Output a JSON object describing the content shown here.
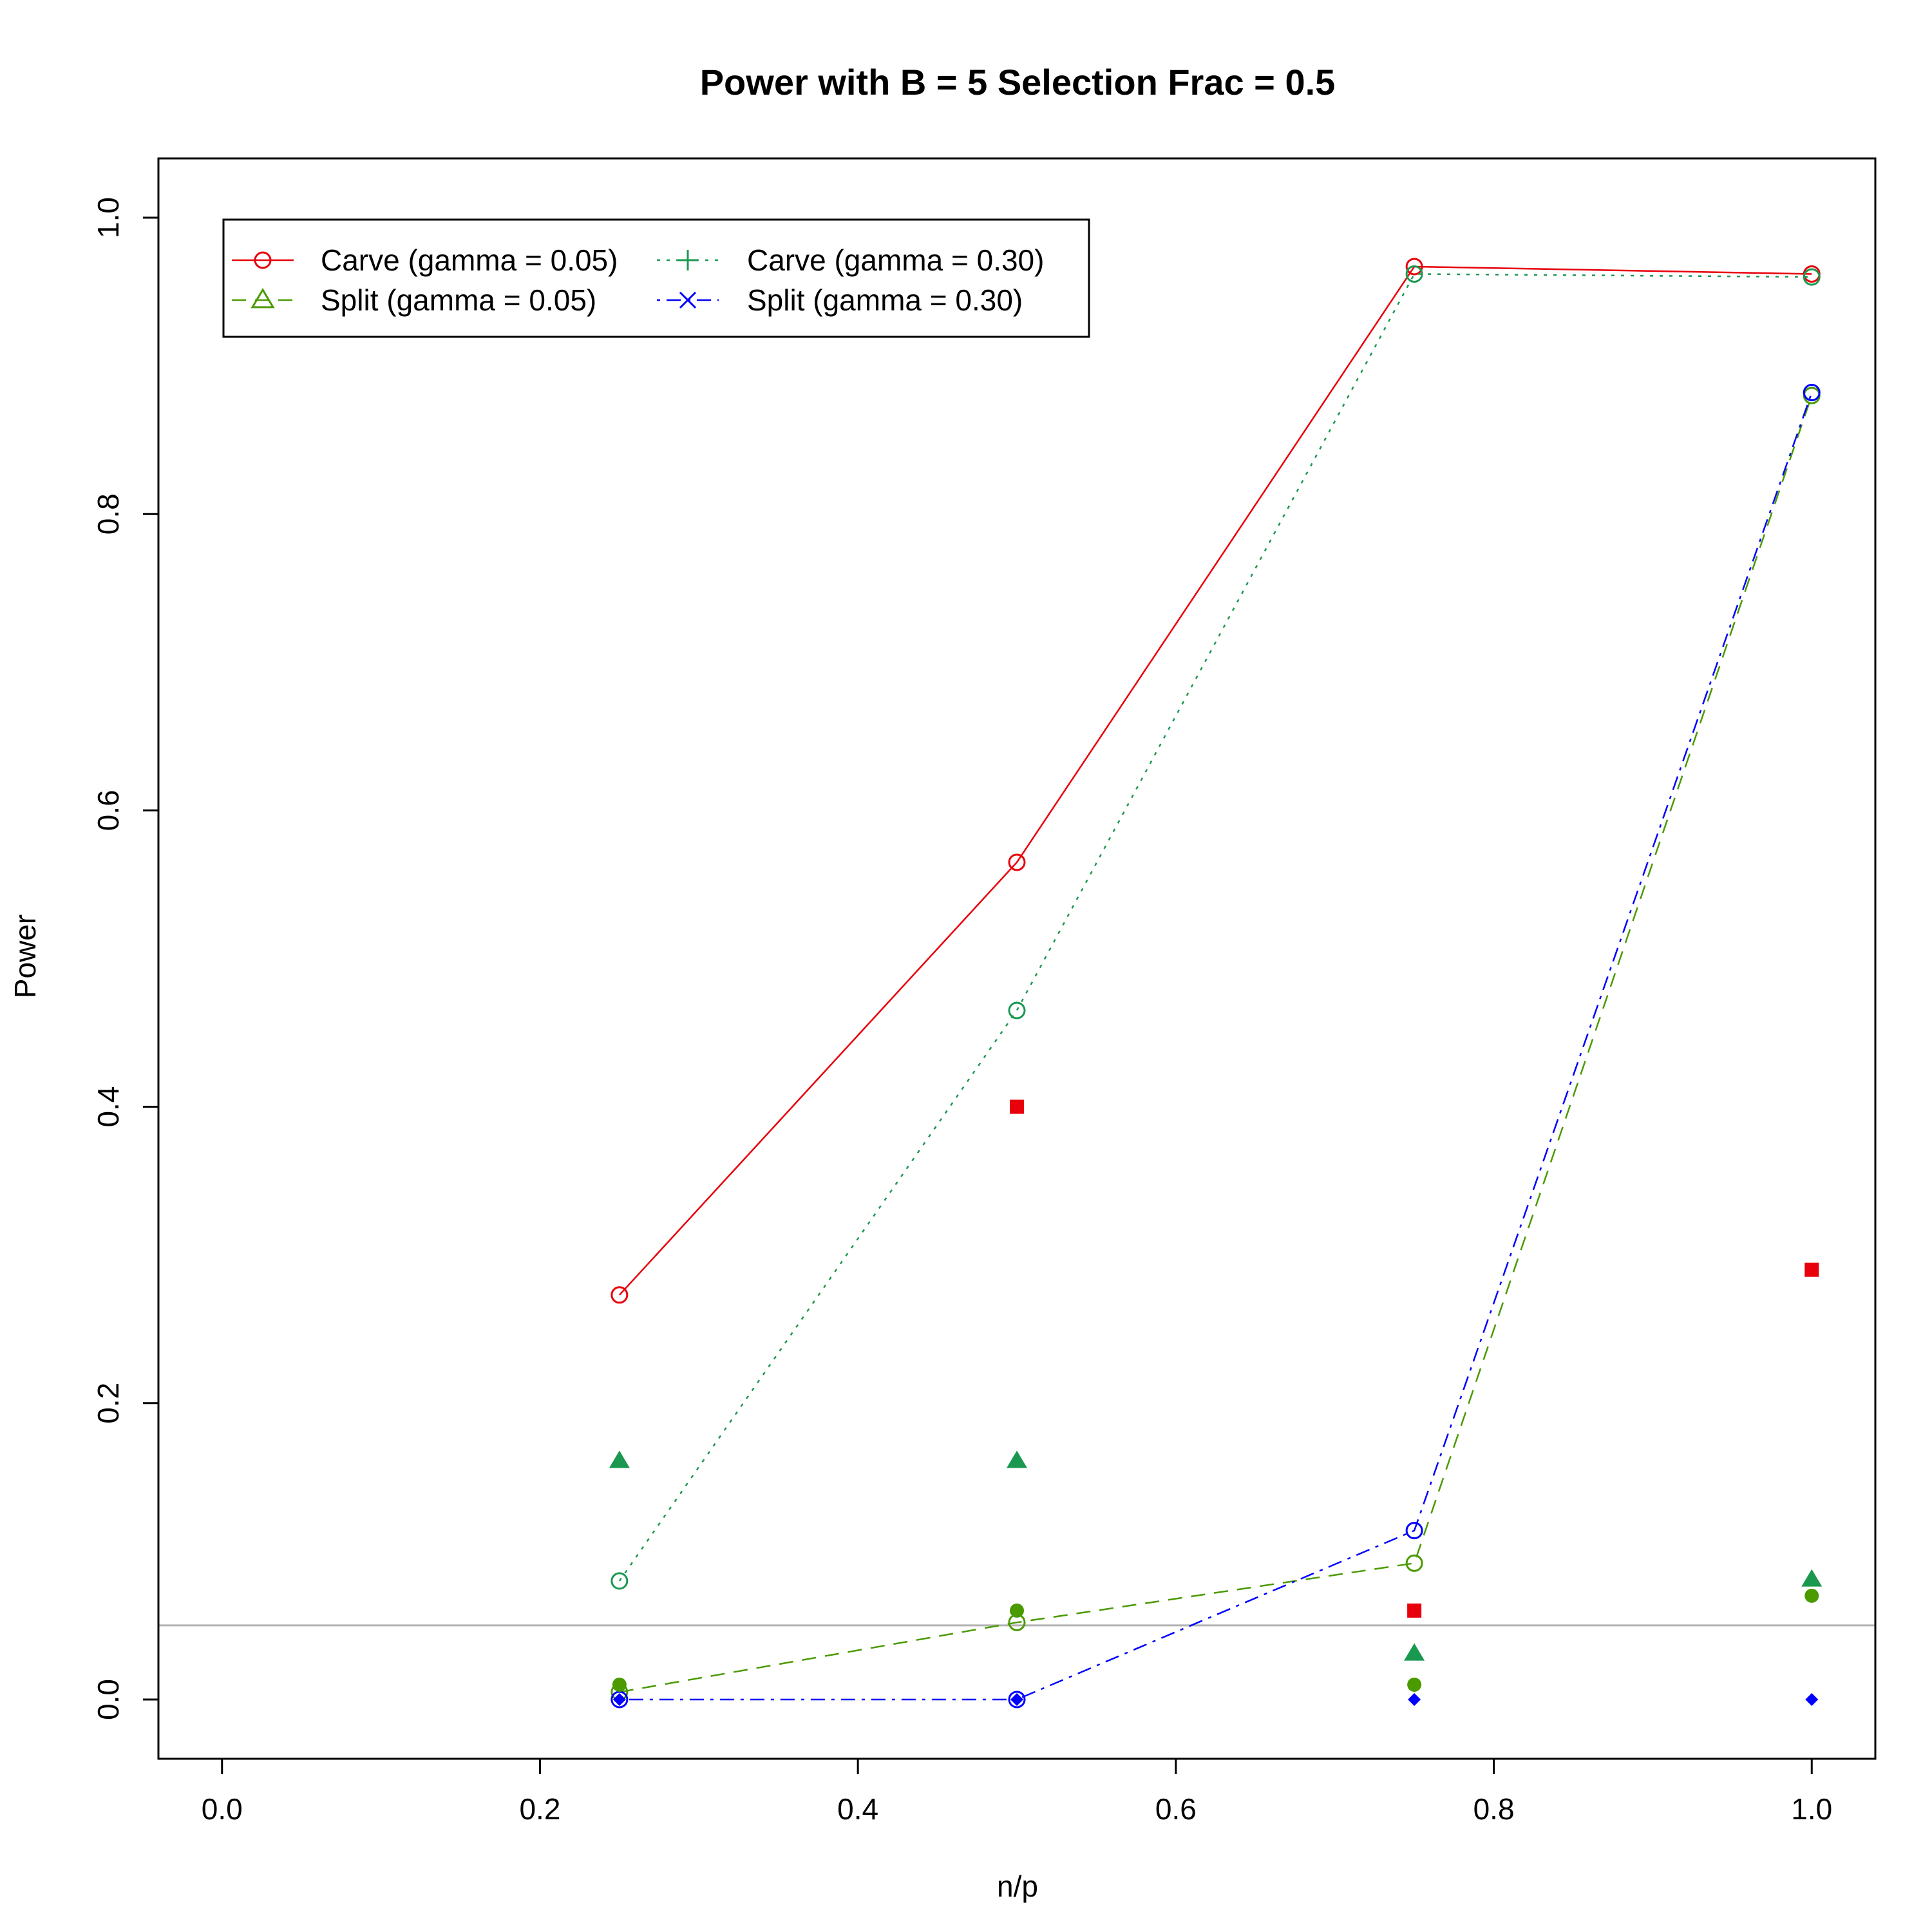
{
  "chart_data": {
    "type": "line",
    "title": "Power with B = 5 Selection Frac = 0.5",
    "xlabel": "n/p",
    "ylabel": "Power",
    "xlim": [
      -0.04,
      1.04
    ],
    "ylim": [
      -0.04,
      1.04
    ],
    "xticks": [
      "0.0",
      "0.2",
      "0.4",
      "0.6",
      "0.8",
      "1.0"
    ],
    "yticks": [
      "0.0",
      "0.2",
      "0.4",
      "0.6",
      "0.8",
      "1.0"
    ],
    "reference_line": {
      "y": 0.05,
      "color": "#b3b3b3"
    },
    "legend_position": "top-left",
    "legend": [
      {
        "label": "Carve (gamma = 0.05)",
        "color": "#e8000b",
        "dash": "solid",
        "marker": "open-circle"
      },
      {
        "label": "Carve (gamma = 0.30)",
        "color": "#1a9850",
        "dash": "dotted",
        "marker": "plus"
      },
      {
        "label": "Split (gamma = 0.05)",
        "color": "#4a9a00",
        "dash": "dashed",
        "marker": "open-triangle"
      },
      {
        "label": "Split (gamma = 0.30)",
        "color": "#0000ff",
        "dash": "dotdash",
        "marker": "cross"
      }
    ],
    "x": [
      0.25,
      0.5,
      0.75,
      1.0
    ],
    "series": [
      {
        "name": "Carve (gamma = 0.05)",
        "color": "#e8000b",
        "dash": "solid",
        "marker": "open-circle",
        "values": [
          0.273,
          0.565,
          0.967,
          0.962
        ]
      },
      {
        "name": "Carve (gamma = 0.30)",
        "color": "#1a9850",
        "dash": "dotted",
        "marker": "open-circle",
        "values": [
          0.08,
          0.465,
          0.962,
          0.96
        ]
      },
      {
        "name": "Split (gamma = 0.05)",
        "color": "#4a9a00",
        "dash": "dashed",
        "marker": "open-circle",
        "values": [
          0.005,
          0.052,
          0.092,
          0.88
        ]
      },
      {
        "name": "Split (gamma = 0.30)",
        "color": "#0000ff",
        "dash": "dotdash",
        "marker": "open-circle",
        "values": [
          0.0,
          0.0,
          0.114,
          0.882
        ]
      }
    ],
    "extra_points": [
      {
        "marker": "filled-square",
        "color": "#e8000b",
        "points": [
          [
            0.5,
            0.4
          ],
          [
            0.75,
            0.06
          ],
          [
            1.0,
            0.29
          ]
        ]
      },
      {
        "marker": "filled-triangle",
        "color": "#1a9850",
        "points": [
          [
            0.25,
            0.161
          ],
          [
            0.5,
            0.161
          ],
          [
            0.75,
            0.031
          ],
          [
            1.0,
            0.081
          ]
        ]
      },
      {
        "marker": "filled-circle",
        "color": "#4a9a00",
        "points": [
          [
            0.25,
            0.01
          ],
          [
            0.5,
            0.06
          ],
          [
            0.75,
            0.01
          ],
          [
            1.0,
            0.07
          ]
        ]
      },
      {
        "marker": "filled-diamond",
        "color": "#0000ff",
        "points": [
          [
            0.25,
            0.0
          ],
          [
            0.5,
            0.0
          ],
          [
            0.75,
            0.0
          ],
          [
            1.0,
            0.0
          ]
        ]
      }
    ]
  }
}
